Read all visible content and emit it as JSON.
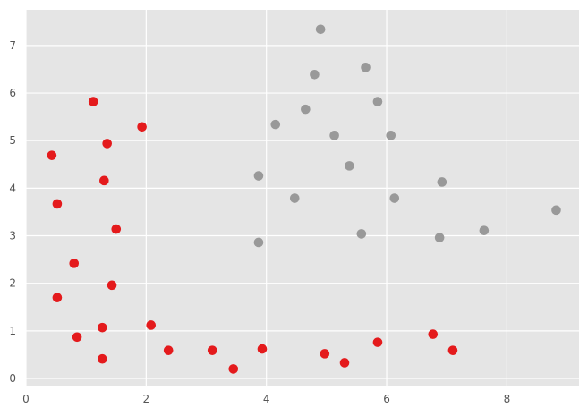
{
  "chart_data": {
    "type": "scatter",
    "title": "",
    "xlabel": "",
    "ylabel": "",
    "xlim": [
      0,
      9.2
    ],
    "ylim": [
      -0.15,
      7.75
    ],
    "grid": true,
    "legend": "none",
    "background_color": "#e5e5e5",
    "grid_color": "#ffffff",
    "x_ticks": [
      0,
      2,
      4,
      6,
      8
    ],
    "y_ticks": [
      0,
      1,
      2,
      3,
      4,
      5,
      6,
      7
    ],
    "series": [
      {
        "color": "#e41a1c",
        "points": [
          {
            "x": 0.43,
            "y": 4.69
          },
          {
            "x": 0.52,
            "y": 3.67
          },
          {
            "x": 0.52,
            "y": 1.7
          },
          {
            "x": 0.8,
            "y": 2.42
          },
          {
            "x": 0.85,
            "y": 0.87
          },
          {
            "x": 1.12,
            "y": 5.82
          },
          {
            "x": 1.27,
            "y": 1.07
          },
          {
            "x": 1.27,
            "y": 0.41
          },
          {
            "x": 1.3,
            "y": 4.16
          },
          {
            "x": 1.35,
            "y": 4.94
          },
          {
            "x": 1.43,
            "y": 1.96
          },
          {
            "x": 1.5,
            "y": 3.14
          },
          {
            "x": 1.93,
            "y": 5.29
          },
          {
            "x": 2.08,
            "y": 1.12
          },
          {
            "x": 2.37,
            "y": 0.59
          },
          {
            "x": 3.1,
            "y": 0.59
          },
          {
            "x": 3.45,
            "y": 0.2
          },
          {
            "x": 3.93,
            "y": 0.62
          },
          {
            "x": 4.97,
            "y": 0.52
          },
          {
            "x": 5.3,
            "y": 0.33
          },
          {
            "x": 5.85,
            "y": 0.76
          },
          {
            "x": 6.77,
            "y": 0.93
          },
          {
            "x": 7.1,
            "y": 0.59
          }
        ]
      },
      {
        "color": "#999999",
        "points": [
          {
            "x": 3.87,
            "y": 4.26
          },
          {
            "x": 3.87,
            "y": 2.86
          },
          {
            "x": 4.15,
            "y": 5.34
          },
          {
            "x": 4.47,
            "y": 3.79
          },
          {
            "x": 4.65,
            "y": 5.66
          },
          {
            "x": 4.8,
            "y": 6.39
          },
          {
            "x": 4.9,
            "y": 7.34
          },
          {
            "x": 5.13,
            "y": 5.11
          },
          {
            "x": 5.38,
            "y": 4.47
          },
          {
            "x": 5.58,
            "y": 3.04
          },
          {
            "x": 5.65,
            "y": 6.54
          },
          {
            "x": 5.85,
            "y": 5.82
          },
          {
            "x": 6.07,
            "y": 5.11
          },
          {
            "x": 6.13,
            "y": 3.79
          },
          {
            "x": 6.88,
            "y": 2.96
          },
          {
            "x": 6.92,
            "y": 4.13
          },
          {
            "x": 7.62,
            "y": 3.11
          },
          {
            "x": 8.82,
            "y": 3.54
          }
        ]
      }
    ]
  }
}
